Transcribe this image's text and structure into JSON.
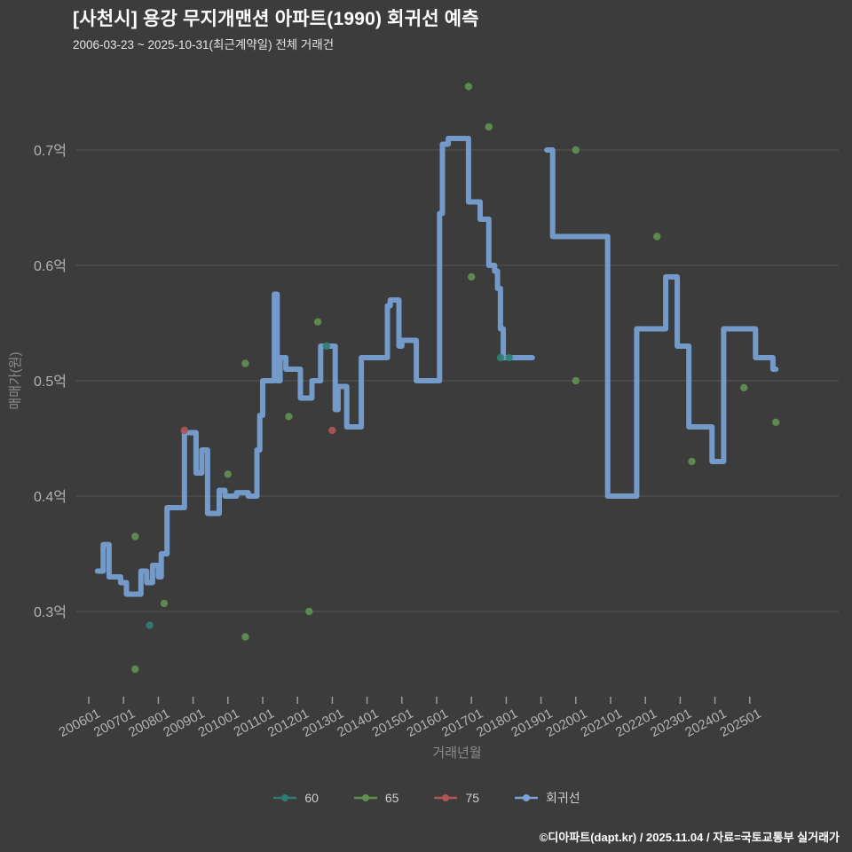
{
  "header": {
    "title": "[사천시] 용강 무지개맨션 아파트(1990) 회귀선 예측",
    "subtitle": "2006-03-23 ~ 2025-10-31(최근계약일) 전체 거래건"
  },
  "footer": {
    "text": "©디아파트(dapt.kr) / 2025.11.04 / 자료=국토교통부 실거래가"
  },
  "colors": {
    "background": "#3c3c3c",
    "grid": "#565656",
    "tick": "#9a9a9a",
    "axis_text": "#b3b3b3",
    "axis_title": "#8d8d8d"
  },
  "chart_data": {
    "type": "line",
    "title": "[사천시] 용강 무지개맨션 아파트(1990) 회귀선 예측",
    "subtitle": "2006-03-23 ~ 2025-10-31(최근계약일) 전체 거래건",
    "xlabel": "거래년월",
    "ylabel": "매매가(원)",
    "y_unit": "억",
    "ylim": [
      0.23,
      0.78
    ],
    "grid": "horizontal",
    "legend_position": "bottom",
    "y_ticks": [
      {
        "label": "0.7억",
        "value": 0.7
      },
      {
        "label": "0.6억",
        "value": 0.6
      },
      {
        "label": "0.5억",
        "value": 0.5
      },
      {
        "label": "0.4억",
        "value": 0.4
      },
      {
        "label": "0.3억",
        "value": 0.3
      }
    ],
    "x_ticks": [
      "200601",
      "200701",
      "200801",
      "200901",
      "201001",
      "201101",
      "201201",
      "201301",
      "201401",
      "201501",
      "201601",
      "201701",
      "201801",
      "201901",
      "202001",
      "202101",
      "202201",
      "202301",
      "202401",
      "202501"
    ],
    "legend": [
      {
        "label": "60",
        "color": "#2f7d72"
      },
      {
        "label": "65",
        "color": "#5e9150"
      },
      {
        "label": "75",
        "color": "#b25454"
      },
      {
        "label": "회귀선",
        "color": "#7aa3d6"
      }
    ],
    "regression": {
      "name": "회귀선",
      "color": "#7aa3d6",
      "segments": [
        [
          [
            "2006-04",
            0.335
          ],
          [
            "2006-06",
            0.358
          ],
          [
            "2006-08",
            0.33
          ],
          [
            "2006-12",
            0.325
          ],
          [
            "2007-02",
            0.315
          ],
          [
            "2007-06",
            0.315
          ],
          [
            "2007-07",
            0.335
          ],
          [
            "2007-09",
            0.325
          ],
          [
            "2007-11",
            0.34
          ],
          [
            "2008-01",
            0.33
          ],
          [
            "2008-02",
            0.35
          ],
          [
            "2008-04",
            0.39
          ],
          [
            "2008-08",
            0.39
          ],
          [
            "2008-10",
            0.455
          ],
          [
            "2008-12",
            0.455
          ],
          [
            "2009-02",
            0.42
          ],
          [
            "2009-04",
            0.44
          ],
          [
            "2009-06",
            0.385
          ],
          [
            "2009-09",
            0.385
          ],
          [
            "2009-10",
            0.405
          ],
          [
            "2009-12",
            0.4
          ],
          [
            "2010-04",
            0.403
          ],
          [
            "2010-08",
            0.4
          ],
          [
            "2010-11",
            0.44
          ],
          [
            "2010-12",
            0.47
          ],
          [
            "2011-01",
            0.5
          ],
          [
            "2011-04",
            0.5
          ],
          [
            "2011-05",
            0.575
          ],
          [
            "2011-06",
            0.5
          ],
          [
            "2011-07",
            0.52
          ],
          [
            "2011-09",
            0.51
          ],
          [
            "2012-01",
            0.51
          ],
          [
            "2012-02",
            0.485
          ],
          [
            "2012-05",
            0.485
          ],
          [
            "2012-06",
            0.5
          ],
          [
            "2012-08",
            0.5
          ],
          [
            "2012-09",
            0.53
          ],
          [
            "2013-01",
            0.53
          ],
          [
            "2013-02",
            0.475
          ],
          [
            "2013-03",
            0.495
          ],
          [
            "2013-05",
            0.495
          ],
          [
            "2013-06",
            0.46
          ],
          [
            "2013-10",
            0.46
          ],
          [
            "2013-11",
            0.52
          ],
          [
            "2014-07",
            0.52
          ],
          [
            "2014-08",
            0.565
          ],
          [
            "2014-09",
            0.57
          ],
          [
            "2014-11",
            0.57
          ],
          [
            "2014-12",
            0.53
          ],
          [
            "2015-01",
            0.535
          ],
          [
            "2015-05",
            0.535
          ],
          [
            "2015-06",
            0.5
          ],
          [
            "2016-01",
            0.5
          ],
          [
            "2016-02",
            0.645
          ],
          [
            "2016-03",
            0.705
          ],
          [
            "2016-05",
            0.71
          ],
          [
            "2016-11",
            0.71
          ],
          [
            "2016-12",
            0.655
          ],
          [
            "2017-03",
            0.655
          ],
          [
            "2017-04",
            0.64
          ],
          [
            "2017-06",
            0.64
          ],
          [
            "2017-07",
            0.6
          ],
          [
            "2017-09",
            0.595
          ],
          [
            "2017-10",
            0.58
          ],
          [
            "2017-11",
            0.545
          ],
          [
            "2017-12",
            0.52
          ],
          [
            "2018-10",
            0.52
          ]
        ],
        [
          [
            "2019-03",
            0.7
          ],
          [
            "2019-05",
            0.625
          ],
          [
            "2020-10",
            0.625
          ],
          [
            "2020-12",
            0.4
          ],
          [
            "2021-08",
            0.4
          ],
          [
            "2021-10",
            0.545
          ],
          [
            "2022-06",
            0.545
          ],
          [
            "2022-08",
            0.59
          ],
          [
            "2022-11",
            0.59
          ],
          [
            "2022-12",
            0.53
          ],
          [
            "2023-03",
            0.53
          ],
          [
            "2023-04",
            0.46
          ],
          [
            "2023-11",
            0.46
          ],
          [
            "2023-12",
            0.43
          ],
          [
            "2024-03",
            0.43
          ],
          [
            "2024-04",
            0.545
          ],
          [
            "2025-02",
            0.545
          ],
          [
            "2025-03",
            0.52
          ],
          [
            "2025-08",
            0.52
          ],
          [
            "2025-09",
            0.51
          ],
          [
            "2025-10",
            0.51
          ]
        ]
      ]
    },
    "scatter": [
      {
        "name": "60",
        "color": "#2f7d72",
        "points": [
          [
            "2007-10",
            0.288
          ],
          [
            "2012-11",
            0.53
          ],
          [
            "2017-11",
            0.52
          ],
          [
            "2018-02",
            0.52
          ]
        ]
      },
      {
        "name": "65",
        "color": "#5e9150",
        "points": [
          [
            "2007-05",
            0.365
          ],
          [
            "2007-05",
            0.25
          ],
          [
            "2008-03",
            0.307
          ],
          [
            "2010-01",
            0.419
          ],
          [
            "2010-07",
            0.278
          ],
          [
            "2010-07",
            0.515
          ],
          [
            "2011-10",
            0.469
          ],
          [
            "2012-05",
            0.3
          ],
          [
            "2012-08",
            0.551
          ],
          [
            "2016-12",
            0.755
          ],
          [
            "2017-01",
            0.59
          ],
          [
            "2017-07",
            0.72
          ],
          [
            "2020-01",
            0.7
          ],
          [
            "2020-01",
            0.5
          ],
          [
            "2022-05",
            0.625
          ],
          [
            "2023-05",
            0.43
          ],
          [
            "2024-11",
            0.494
          ],
          [
            "2025-10",
            0.464
          ]
        ]
      },
      {
        "name": "75",
        "color": "#b25454",
        "points": [
          [
            "2008-10",
            0.457
          ],
          [
            "2013-01",
            0.457
          ]
        ]
      }
    ]
  }
}
